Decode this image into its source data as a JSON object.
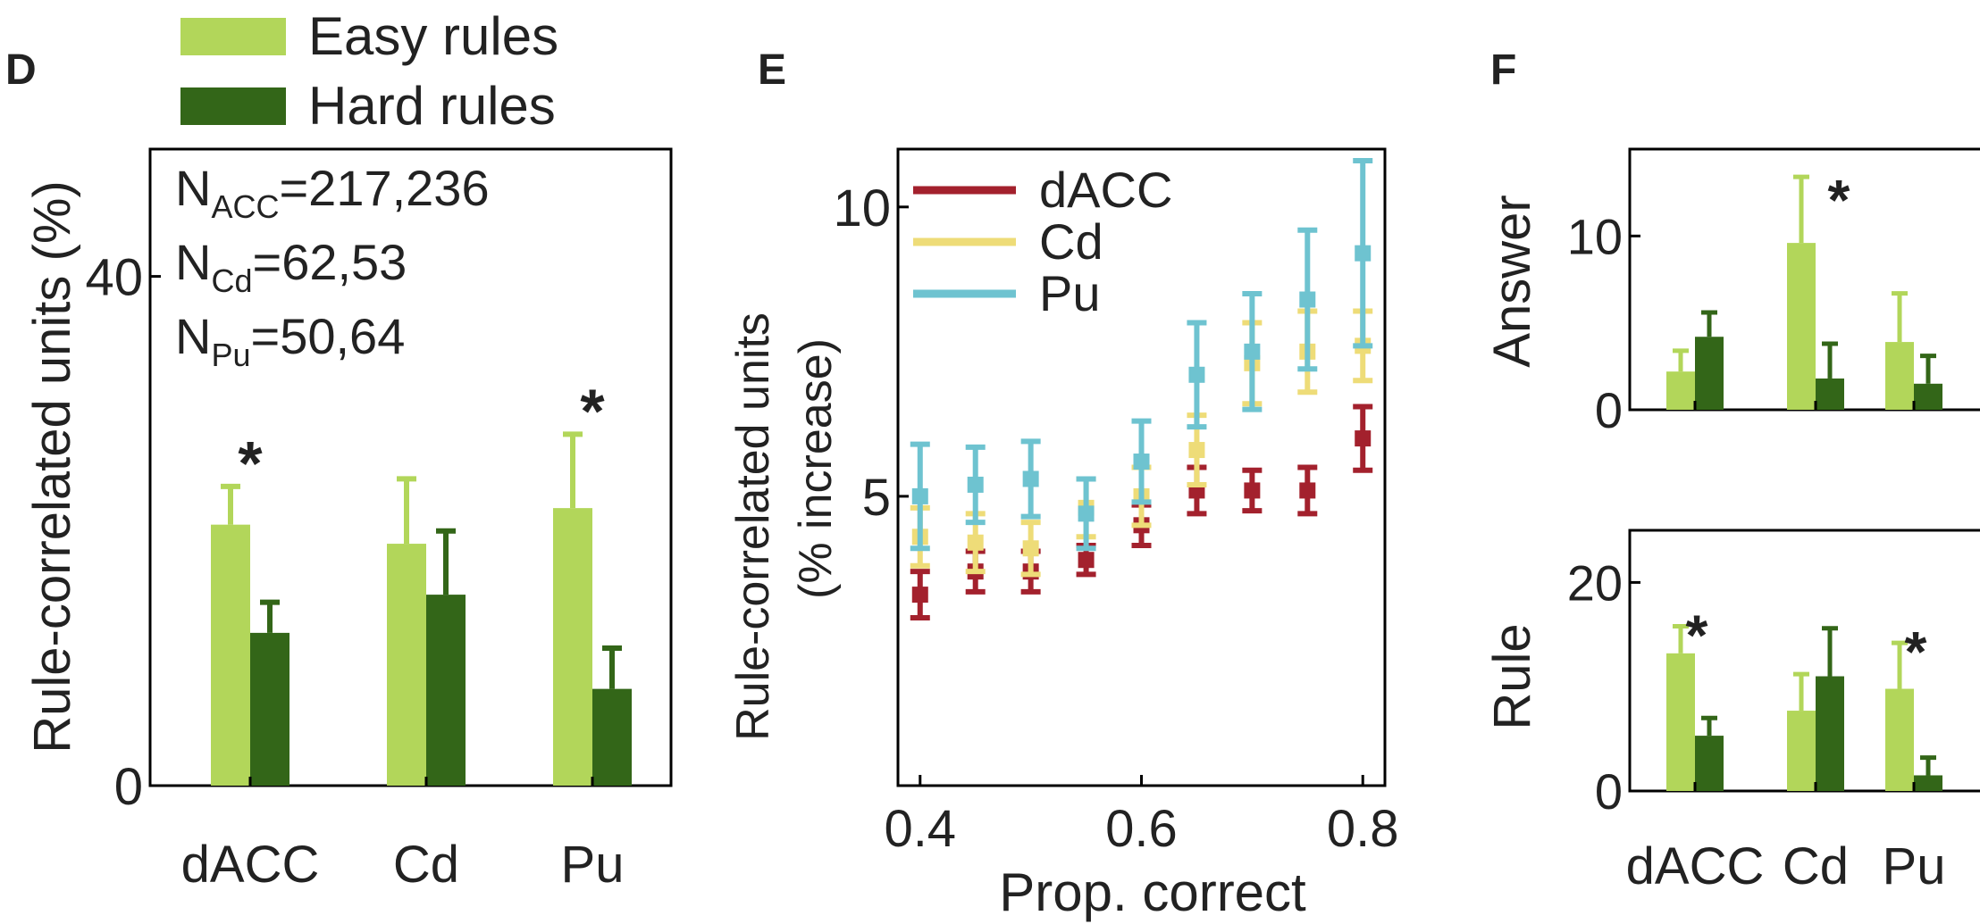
{
  "panels": [
    {
      "letter": "D"
    },
    {
      "letter": "E"
    },
    {
      "letter": "F"
    }
  ],
  "colors": {
    "easy": "#b2d65a",
    "hard": "#336618",
    "dACC": "#a3212d",
    "Cd": "#eedc78",
    "Pu": "#6ec3d0",
    "axis": "#000000",
    "text": "#222222"
  },
  "chart_data": [
    {
      "panel": "D",
      "type": "bar",
      "ylabel": "Rule-correlated units (%)",
      "xlabel": "",
      "ylim": [
        0,
        50
      ],
      "yticks": [
        0,
        40
      ],
      "categories": [
        "dACC",
        "Cd",
        "Pu"
      ],
      "series": [
        {
          "name": "Easy rules",
          "values": [
            20.5,
            19,
            21.8
          ],
          "err": [
            3,
            5.1,
            5.8
          ]
        },
        {
          "name": "Hard rules",
          "values": [
            12,
            15,
            7.6
          ],
          "err": [
            2.4,
            5,
            3.2
          ]
        }
      ],
      "legend": [
        "Easy rules",
        "Hard rules"
      ],
      "legend_position": "top",
      "significance": [
        "*",
        "",
        "*"
      ],
      "annotations": [
        {
          "base": "N",
          "sub": "ACC",
          "rest": "=217,236"
        },
        {
          "base": "N",
          "sub": "Cd",
          "rest": "=62,53"
        },
        {
          "base": "N",
          "sub": "Pu",
          "rest": "=50,64"
        }
      ]
    },
    {
      "panel": "E",
      "type": "scatter",
      "xlabel": "Prop. correct",
      "ylabel": "Rule-correlated units",
      "ylabel2": "(% increase)",
      "xlim": [
        0.38,
        0.82
      ],
      "ylim": [
        0,
        11
      ],
      "xticks": [
        0.4,
        0.6,
        0.8
      ],
      "xtick_labels": [
        "0.4",
        "0.6",
        "0.8"
      ],
      "yticks": [
        5,
        10
      ],
      "x": [
        0.4,
        0.45,
        0.5,
        0.55,
        0.6,
        0.65,
        0.7,
        0.75,
        0.8
      ],
      "series": [
        {
          "name": "dACC",
          "values": [
            3.3,
            3.7,
            3.7,
            3.9,
            4.5,
            5.1,
            5.1,
            5.1,
            6.0
          ],
          "err": [
            0.4,
            0.35,
            0.35,
            0.25,
            0.35,
            0.4,
            0.35,
            0.4,
            0.55
          ]
        },
        {
          "name": "Cd",
          "values": [
            4.3,
            4.2,
            4.1,
            4.8,
            5.0,
            5.8,
            7.3,
            7.5,
            7.6
          ],
          "err": [
            0.5,
            0.5,
            0.45,
            0.5,
            0.5,
            0.6,
            0.7,
            0.7,
            0.6
          ]
        },
        {
          "name": "Pu",
          "values": [
            5.0,
            5.2,
            5.3,
            4.7,
            5.6,
            7.1,
            7.5,
            8.4,
            9.2
          ],
          "err": [
            0.9,
            0.65,
            0.65,
            0.6,
            0.7,
            0.9,
            1.0,
            1.2,
            1.6
          ]
        }
      ],
      "legend": [
        "dACC",
        "Cd",
        "Pu"
      ],
      "legend_position": "top-left"
    },
    {
      "panel": "F-top",
      "type": "bar",
      "ylabel": "Answer",
      "ylim": [
        0,
        15
      ],
      "yticks": [
        0,
        10
      ],
      "categories": [
        "dACC",
        "Cd",
        "Pu"
      ],
      "series": [
        {
          "name": "Easy rules",
          "values": [
            2.2,
            9.6,
            3.9
          ],
          "err": [
            1.2,
            3.8,
            2.8
          ]
        },
        {
          "name": "Hard rules",
          "values": [
            4.2,
            1.8,
            1.5
          ],
          "err": [
            1.4,
            2.0,
            1.6
          ]
        }
      ],
      "significance": [
        "",
        "*",
        ""
      ]
    },
    {
      "panel": "F-bottom",
      "type": "bar",
      "ylabel": "Rule",
      "ylim": [
        0,
        25
      ],
      "yticks": [
        0,
        20
      ],
      "categories": [
        "dACC",
        "Cd",
        "Pu"
      ],
      "series": [
        {
          "name": "Easy rules",
          "values": [
            13.2,
            7.7,
            9.8
          ],
          "err": [
            2.6,
            3.5,
            4.4
          ]
        },
        {
          "name": "Hard rules",
          "values": [
            5.3,
            11.0,
            1.5
          ],
          "err": [
            1.7,
            4.6,
            1.7
          ]
        }
      ],
      "significance": [
        "*",
        "",
        "*"
      ]
    }
  ]
}
